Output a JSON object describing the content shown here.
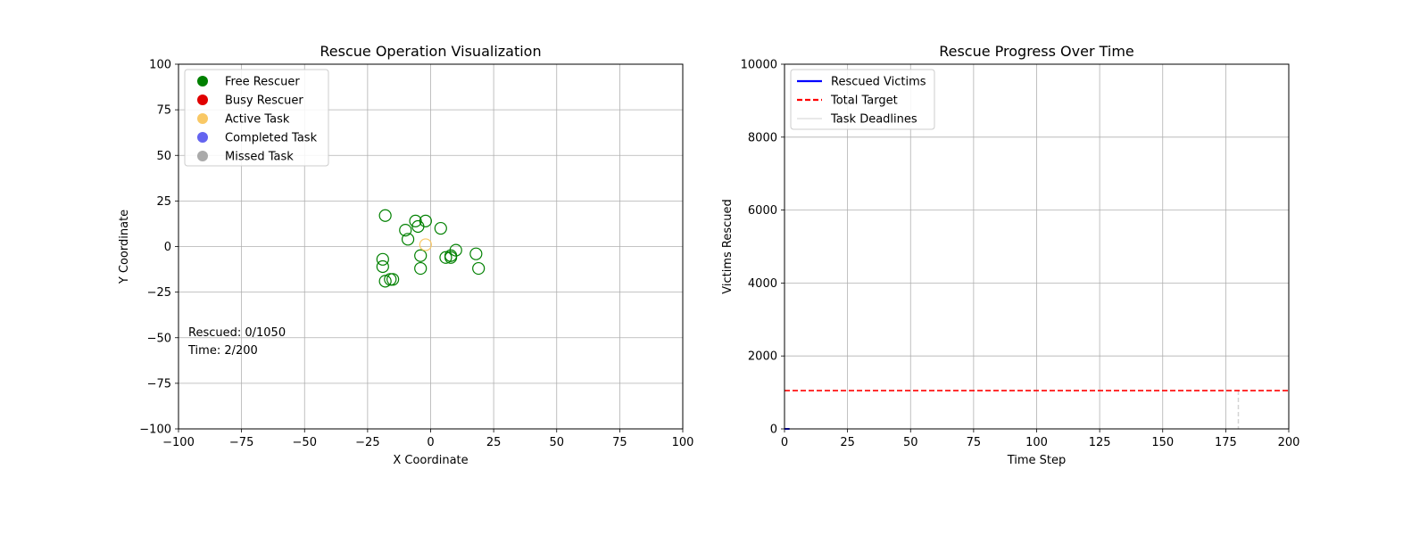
{
  "chart_data": [
    {
      "type": "scatter",
      "title": "Rescue Operation Visualization",
      "xlabel": "X Coordinate",
      "ylabel": "Y Coordinate",
      "xlim": [
        -100,
        100
      ],
      "ylim": [
        -100,
        100
      ],
      "xticks": [
        -100,
        -75,
        -50,
        -25,
        0,
        25,
        50,
        75,
        100
      ],
      "yticks": [
        -100,
        -75,
        -50,
        -25,
        0,
        25,
        50,
        75,
        100
      ],
      "xtick_labels": [
        "−100",
        "−75",
        "−50",
        "−25",
        "0",
        "25",
        "50",
        "75",
        "100"
      ],
      "ytick_labels": [
        "−100",
        "−75",
        "−50",
        "−25",
        "0",
        "25",
        "50",
        "75",
        "100"
      ],
      "grid": true,
      "legend_position": "top-left",
      "legend": [
        {
          "label": "Free Rescuer",
          "color": "#008000"
        },
        {
          "label": "Busy Rescuer",
          "color": "#e00000"
        },
        {
          "label": "Active Task",
          "color": "#f9c865"
        },
        {
          "label": "Completed Task",
          "color": "#6464f0"
        },
        {
          "label": "Missed Task",
          "color": "#aaaaaa"
        }
      ],
      "annotations": [
        "Rescued: 0/1050",
        "Time: 2/200"
      ],
      "series": [
        {
          "name": "Free Rescuer",
          "color": "#008000",
          "marker": "hollow-circle",
          "points": [
            [
              -18,
              17
            ],
            [
              -6,
              14
            ],
            [
              -2,
              14
            ],
            [
              4,
              10
            ],
            [
              -10,
              9
            ],
            [
              -5,
              11
            ],
            [
              -9,
              4
            ],
            [
              -19,
              -7
            ],
            [
              -19,
              -11
            ],
            [
              -4,
              -5
            ],
            [
              -4,
              -12
            ],
            [
              6,
              -6
            ],
            [
              8,
              -5
            ],
            [
              8,
              -6
            ],
            [
              10,
              -2
            ],
            [
              18,
              -4
            ],
            [
              19,
              -12
            ],
            [
              -18,
              -19
            ],
            [
              -15,
              -18
            ],
            [
              -16,
              -18
            ]
          ]
        },
        {
          "name": "Active Task",
          "color": "#f9c865",
          "marker": "hollow-circle",
          "points": [
            [
              -2,
              1
            ]
          ]
        }
      ]
    },
    {
      "type": "line",
      "title": "Rescue Progress Over Time",
      "xlabel": "Time Step",
      "ylabel": "Victims Rescued",
      "xlim": [
        0,
        200
      ],
      "ylim": [
        0,
        10000
      ],
      "xticks": [
        0,
        25,
        50,
        75,
        100,
        125,
        150,
        175,
        200
      ],
      "yticks": [
        0,
        2000,
        4000,
        6000,
        8000,
        10000
      ],
      "xtick_labels": [
        "0",
        "25",
        "50",
        "75",
        "100",
        "125",
        "150",
        "175",
        "200"
      ],
      "ytick_labels": [
        "0",
        "2000",
        "4000",
        "6000",
        "8000",
        "10000"
      ],
      "grid": true,
      "legend_position": "top-left",
      "legend": [
        {
          "label": "Rescued Victims",
          "color": "#0000ff",
          "style": "solid"
        },
        {
          "label": "Total Target",
          "color": "#ff0000",
          "style": "dashed"
        },
        {
          "label": "Task Deadlines",
          "color": "#d3d3d3",
          "style": "solid"
        }
      ],
      "series": [
        {
          "name": "Rescued Victims",
          "color": "#0000ff",
          "x": [
            0,
            1,
            2
          ],
          "y": [
            0,
            0,
            0
          ]
        },
        {
          "name": "Total Target",
          "color": "#ff0000",
          "y_constant": 1050
        },
        {
          "name": "Task Deadlines",
          "color": "#d3d3d3",
          "x_positions": [
            180
          ],
          "y_range": [
            0,
            1050
          ]
        }
      ]
    }
  ]
}
